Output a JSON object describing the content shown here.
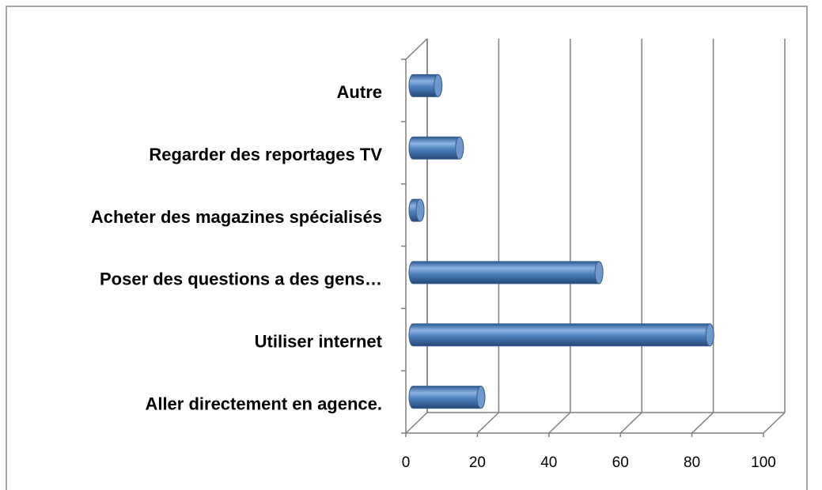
{
  "chart_data": {
    "type": "bar3d_horizontal",
    "categories": [
      "Aller directement en agence.",
      "Utiliser internet",
      "Poser des questions a des gens…",
      "Acheter des magazines spécialisés",
      "Regarder des reportages TV",
      "Autre"
    ],
    "values": [
      19,
      83,
      52,
      2,
      13,
      7
    ],
    "color": "#4f81bd",
    "xlim": [
      0,
      100
    ],
    "xticks": [
      0,
      20,
      40,
      60,
      80,
      100
    ],
    "grid": true
  }
}
